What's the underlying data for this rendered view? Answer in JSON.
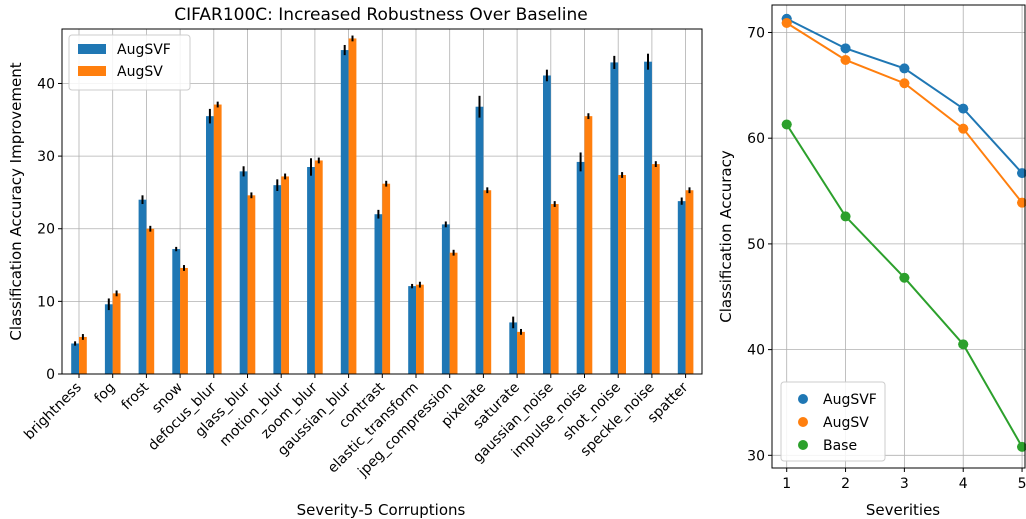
{
  "chart_data": [
    {
      "type": "bar",
      "title": "CIFAR100C: Increased Robustness Over Baseline",
      "xlabel": "Severity-5 Corruptions",
      "ylabel": "Classification Accuracy Improvement",
      "ylim": [
        0,
        47.5
      ],
      "yticks": [
        0,
        10,
        20,
        30,
        40
      ],
      "grid": true,
      "legend": "top-left",
      "categories": [
        "brightness",
        "fog",
        "frost",
        "snow",
        "defocus_blur",
        "glass_blur",
        "motion_blur",
        "zoom_blur",
        "gaussian_blur",
        "contrast",
        "elastic_transform",
        "jpeg_compression",
        "pixelate",
        "saturate",
        "gaussian_noise",
        "impulse_noise",
        "shot_noise",
        "speckle_noise",
        "spatter"
      ],
      "series": [
        {
          "name": "AugSVF",
          "color": "#1f77b4",
          "values": [
            4.2,
            9.6,
            24.0,
            17.2,
            35.5,
            27.9,
            26.0,
            28.5,
            44.6,
            22.0,
            12.1,
            20.6,
            36.8,
            7.1,
            41.1,
            29.2,
            42.9,
            43.0,
            23.8
          ],
          "errors": [
            0.3,
            0.8,
            0.6,
            0.3,
            1.0,
            0.7,
            0.8,
            1.2,
            0.7,
            0.6,
            0.3,
            0.4,
            1.5,
            0.8,
            0.8,
            1.3,
            0.9,
            1.1,
            0.5
          ]
        },
        {
          "name": "AugSV",
          "color": "#ff7f0e",
          "values": [
            5.1,
            11.1,
            20.0,
            14.6,
            37.1,
            24.6,
            27.2,
            29.4,
            46.2,
            26.2,
            12.3,
            16.7,
            25.3,
            5.8,
            23.4,
            35.5,
            27.4,
            28.9,
            25.3
          ]
        }
      ],
      "errorbar_color": "#000000"
    },
    {
      "type": "line",
      "xlabel": "Severities",
      "ylabel": "Classification Accuracy",
      "x": [
        1,
        2,
        3,
        4,
        5
      ],
      "xlim": [
        0.75,
        5.05
      ],
      "xticks": [
        1,
        2,
        3,
        4,
        5
      ],
      "ylim": [
        28.8,
        72.6
      ],
      "yticks": [
        30,
        40,
        50,
        60,
        70
      ],
      "grid": true,
      "legend": "bottom-left",
      "series": [
        {
          "name": "AugSVF",
          "color": "#1f77b4",
          "values": [
            71.3,
            68.5,
            66.6,
            62.8,
            56.7
          ]
        },
        {
          "name": "AugSV",
          "color": "#ff7f0e",
          "values": [
            70.9,
            67.4,
            65.2,
            60.9,
            53.9
          ]
        },
        {
          "name": "Base",
          "color": "#2ca02c",
          "values": [
            61.3,
            52.6,
            46.8,
            40.5,
            30.8
          ]
        }
      ]
    }
  ]
}
